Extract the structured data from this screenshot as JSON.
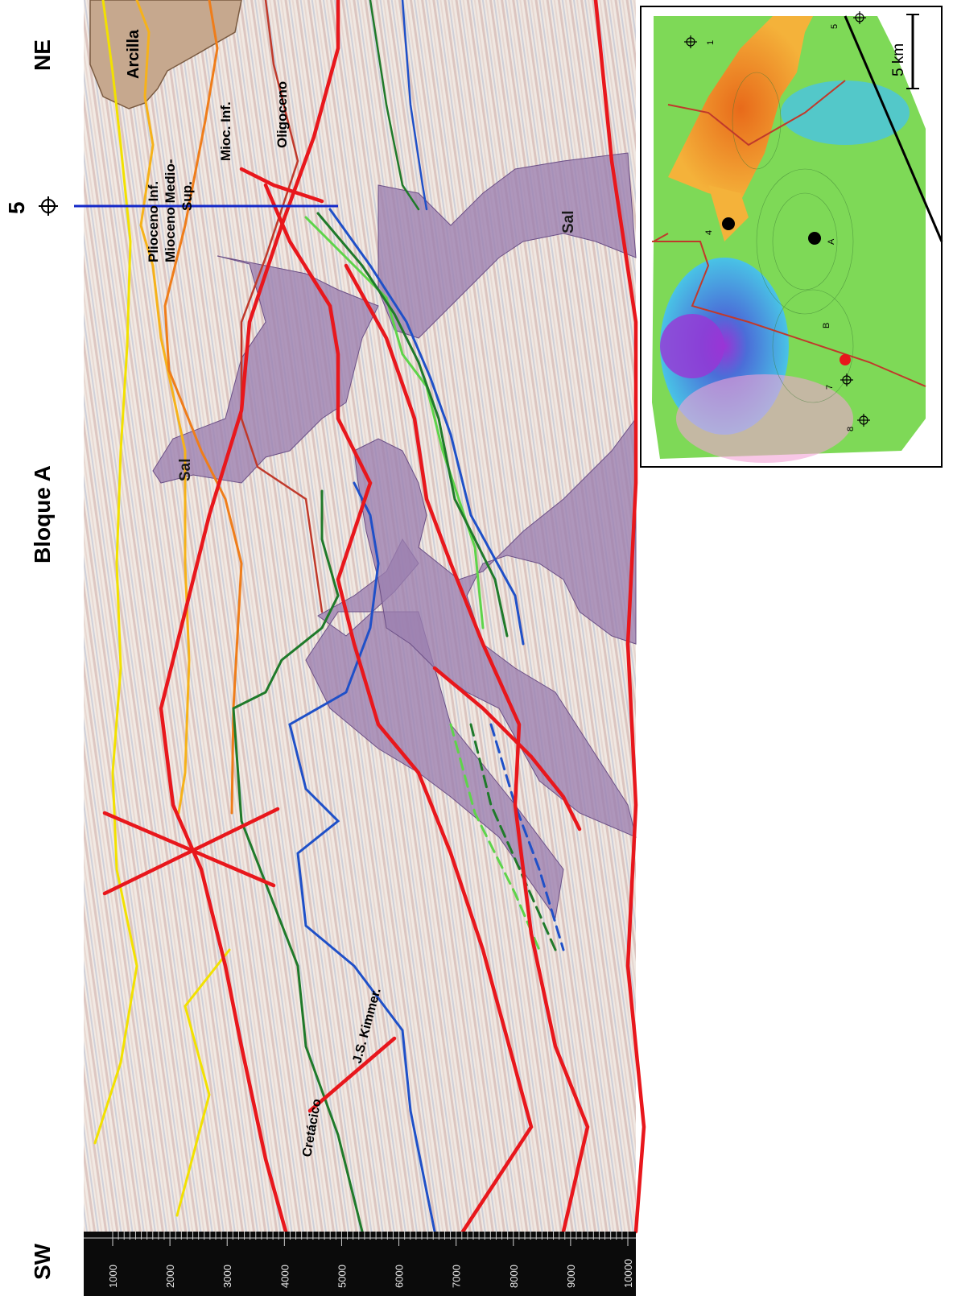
{
  "labels": {
    "sw": "SW",
    "ne": "NE",
    "block": "Bloque A",
    "well_top": "5",
    "arcilla": "Arcilla",
    "plioceno": "Plioceno Inf.",
    "mioceno_medio": "Mioceno Medio-",
    "mioceno_medio_sup": "Sup.",
    "mioc_inf": "Mioc. Inf.",
    "oligoceno": "Oligoceno",
    "sal_1": "Sal",
    "sal_2": "Sal",
    "cretacico": "Cretácico",
    "js_kimmer": "J.S. Kimmer."
  },
  "depth_scale": {
    "ticks": [
      "1000",
      "2000",
      "3000",
      "4000",
      "5000",
      "6000",
      "7000",
      "8000",
      "9000",
      "10000"
    ]
  },
  "map": {
    "scale": "5 km",
    "wells": [
      "1",
      "5",
      "4",
      "A",
      "B",
      "7",
      "8"
    ]
  },
  "colors": {
    "fault": "#e8171c",
    "salt": "#9b7fb0",
    "clay": "#c6a88e",
    "pliocene": "#f2e100",
    "mio_medio": "#f6b21a",
    "mio_inf": "#ef7d1a",
    "oligo": "#c0392b",
    "cretaceous": "#1f7a2a",
    "jurassic": "#1f50c8",
    "light_green": "#5ed44a",
    "blue_well": "#1428c8"
  }
}
